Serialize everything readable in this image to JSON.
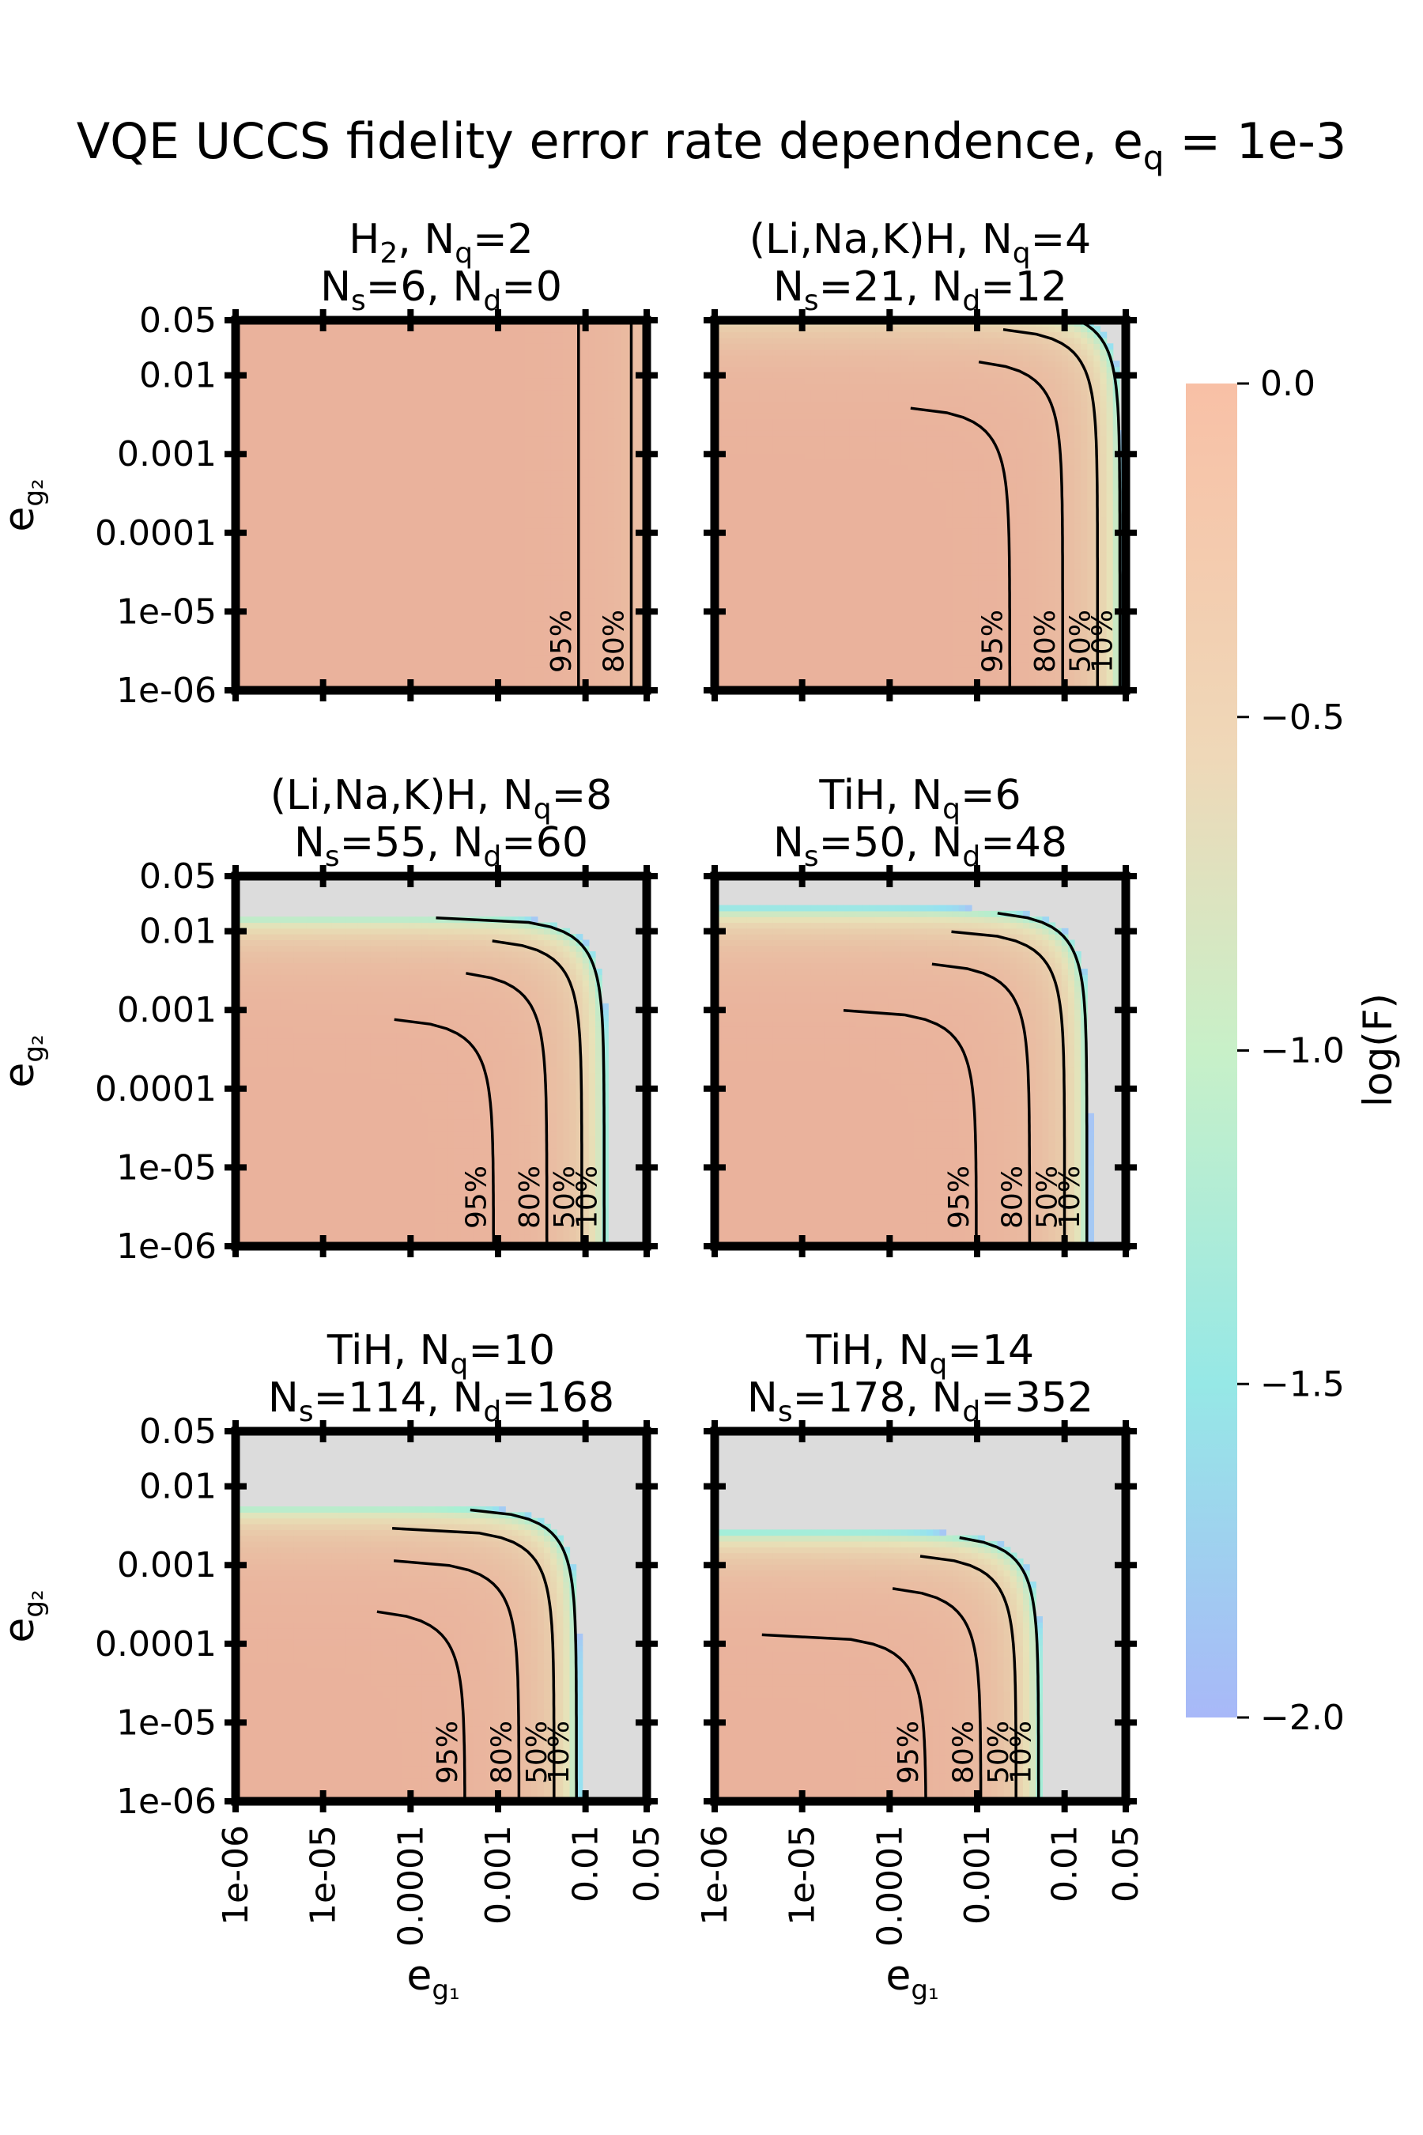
{
  "figure": {
    "title": "VQE UCCS fidelity error rate dependence, e",
    "title_sub": "q",
    "title_tail": " = 1e-3",
    "colorbar_label": "log(F)",
    "colorbar_ticks": [
      "0.0",
      "−0.5",
      "−1.0",
      "−1.5",
      "−2.0"
    ],
    "x_tick_labels": [
      "1e-06",
      "1e-05",
      "0.0001",
      "0.001",
      "0.01",
      "0.05"
    ],
    "y_tick_labels": [
      "1e-06",
      "1e-05",
      "0.0001",
      "0.001",
      "0.01",
      "0.05"
    ],
    "xlabel": "e",
    "xlabel_sub": "g₁",
    "ylabel": "e",
    "ylabel_sub": "g₂",
    "colors": {
      "max": "#eab29c",
      "mid": "#e8e2b8",
      "green": "#a7f0d4",
      "blue": "#a8c4f5",
      "undefined": "#dcdcdc",
      "contour": "#000000"
    }
  },
  "chart_data": [
    {
      "type": "contour",
      "title_line1": [
        [
          "H",
          ""
        ],
        [
          "2",
          "sub"
        ],
        [
          ", N",
          ""
        ],
        [
          "q",
          "sub"
        ],
        [
          "=2",
          ""
        ]
      ],
      "title_line2": [
        [
          "N",
          ""
        ],
        [
          "s",
          "sub"
        ],
        [
          "=6, N",
          ""
        ],
        [
          "d",
          "sub"
        ],
        [
          "=0",
          ""
        ]
      ],
      "Ns": 6,
      "Nd": 0,
      "contours": [
        "95%",
        "80%"
      ],
      "xscale": "log",
      "yscale": "log",
      "xlim": [
        1e-06,
        0.05
      ],
      "ylim": [
        1e-06,
        0.05
      ],
      "zlim": [
        -2.0,
        0.0
      ]
    },
    {
      "type": "contour",
      "title_line1": [
        [
          "(Li,Na,K)H, N",
          ""
        ],
        [
          "q",
          "sub"
        ],
        [
          "=4",
          ""
        ]
      ],
      "title_line2": [
        [
          "N",
          ""
        ],
        [
          "s",
          "sub"
        ],
        [
          "=21, N",
          ""
        ],
        [
          "d",
          "sub"
        ],
        [
          "=12",
          ""
        ]
      ],
      "Ns": 21,
      "Nd": 12,
      "contours": [
        "95%",
        "80%",
        "50%",
        "10%"
      ],
      "xscale": "log",
      "yscale": "log",
      "xlim": [
        1e-06,
        0.05
      ],
      "ylim": [
        1e-06,
        0.05
      ],
      "zlim": [
        -2.0,
        0.0
      ]
    },
    {
      "type": "contour",
      "title_line1": [
        [
          "(Li,Na,K)H, N",
          ""
        ],
        [
          "q",
          "sub"
        ],
        [
          "=8",
          ""
        ]
      ],
      "title_line2": [
        [
          "N",
          ""
        ],
        [
          "s",
          "sub"
        ],
        [
          "=55, N",
          ""
        ],
        [
          "d",
          "sub"
        ],
        [
          "=60",
          ""
        ]
      ],
      "Ns": 55,
      "Nd": 60,
      "contours": [
        "95%",
        "80%",
        "50%",
        "10%"
      ],
      "xscale": "log",
      "yscale": "log",
      "xlim": [
        1e-06,
        0.05
      ],
      "ylim": [
        1e-06,
        0.05
      ],
      "zlim": [
        -2.0,
        0.0
      ]
    },
    {
      "type": "contour",
      "title_line1": [
        [
          "TiH, N",
          ""
        ],
        [
          "q",
          "sub"
        ],
        [
          "=6",
          ""
        ]
      ],
      "title_line2": [
        [
          "N",
          ""
        ],
        [
          "s",
          "sub"
        ],
        [
          "=50, N",
          ""
        ],
        [
          "d",
          "sub"
        ],
        [
          "=48",
          ""
        ]
      ],
      "Ns": 50,
      "Nd": 48,
      "contours": [
        "95%",
        "80%",
        "50%",
        "10%"
      ],
      "xscale": "log",
      "yscale": "log",
      "xlim": [
        1e-06,
        0.05
      ],
      "ylim": [
        1e-06,
        0.05
      ],
      "zlim": [
        -2.0,
        0.0
      ]
    },
    {
      "type": "contour",
      "title_line1": [
        [
          "TiH, N",
          ""
        ],
        [
          "q",
          "sub"
        ],
        [
          "=10",
          ""
        ]
      ],
      "title_line2": [
        [
          "N",
          ""
        ],
        [
          "s",
          "sub"
        ],
        [
          "=114, N",
          ""
        ],
        [
          "d",
          "sub"
        ],
        [
          "=168",
          ""
        ]
      ],
      "Ns": 114,
      "Nd": 168,
      "contours": [
        "95%",
        "80%",
        "50%",
        "10%"
      ],
      "xscale": "log",
      "yscale": "log",
      "xlim": [
        1e-06,
        0.05
      ],
      "ylim": [
        1e-06,
        0.05
      ],
      "zlim": [
        -2.0,
        0.0
      ]
    },
    {
      "type": "contour",
      "title_line1": [
        [
          "TiH, N",
          ""
        ],
        [
          "q",
          "sub"
        ],
        [
          "=14",
          ""
        ]
      ],
      "title_line2": [
        [
          "N",
          ""
        ],
        [
          "s",
          "sub"
        ],
        [
          "=178, N",
          ""
        ],
        [
          "d",
          "sub"
        ],
        [
          "=352",
          ""
        ]
      ],
      "Ns": 178,
      "Nd": 352,
      "contours": [
        "95%",
        "80%",
        "50%",
        "10%"
      ],
      "xscale": "log",
      "yscale": "log",
      "xlim": [
        1e-06,
        0.05
      ],
      "ylim": [
        1e-06,
        0.05
      ],
      "zlim": [
        -2.0,
        0.0
      ]
    }
  ]
}
